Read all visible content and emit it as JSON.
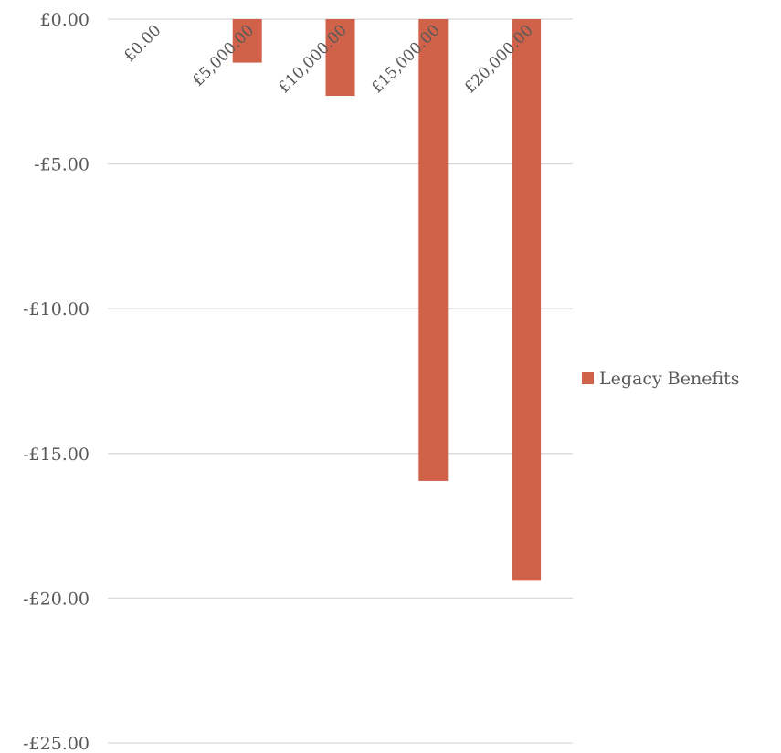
{
  "chart_data": {
    "type": "bar",
    "categories": [
      "£0.00",
      "£5,000.00",
      "£10,000.00",
      "£15,000.00",
      "£20,000.00"
    ],
    "series": [
      {
        "name": "Legacy Benefits",
        "values": [
          0,
          -1.5,
          -2.65,
          -15.95,
          -19.4
        ],
        "color": "#d0624a"
      }
    ],
    "ylim": [
      -25,
      0
    ],
    "yticks": [
      0,
      -5,
      -10,
      -15,
      -20,
      -25
    ],
    "ytick_labels": [
      "£0.00",
      "-£5.00",
      "-£10.00",
      "-£15.00",
      "-£20.00",
      "-£25.00"
    ],
    "grid": true,
    "legend_position": "right"
  }
}
